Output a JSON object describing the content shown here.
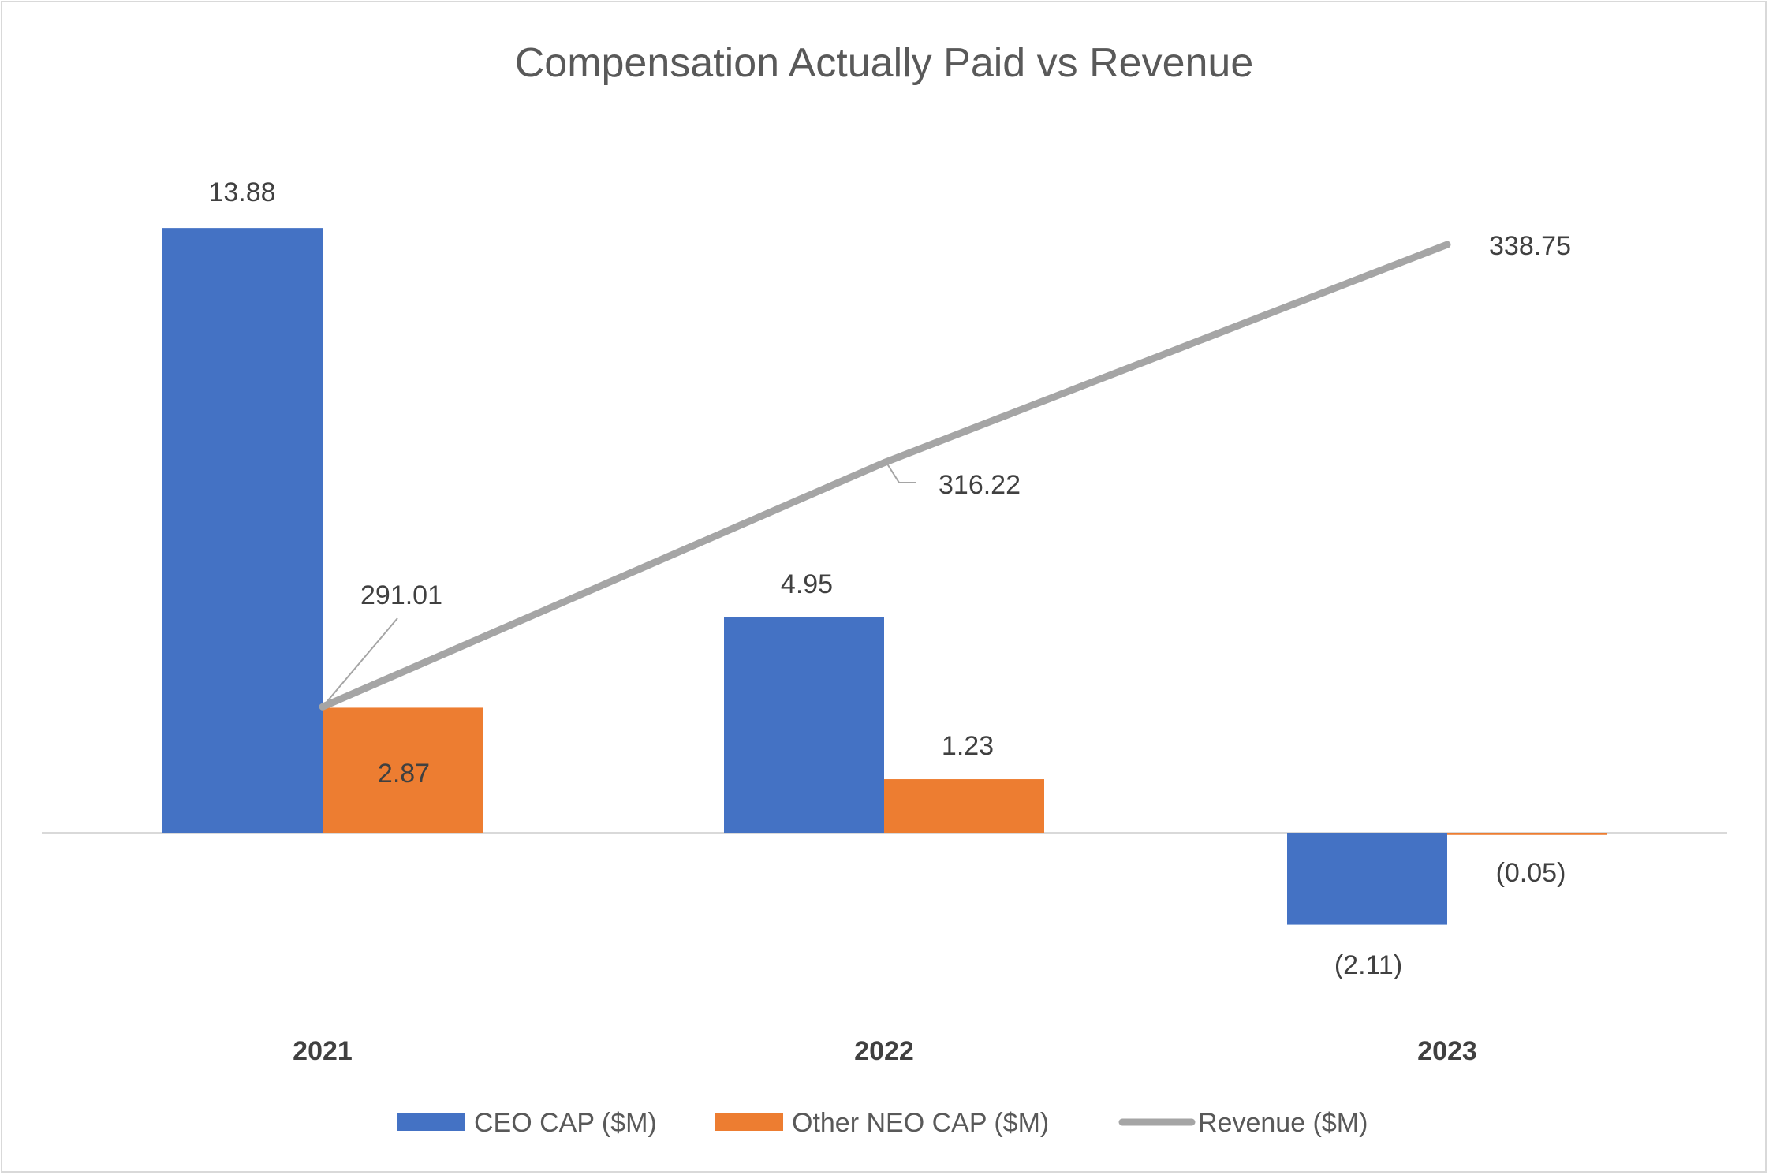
{
  "chart_data": {
    "type": "bar",
    "title": "Compensation Actually Paid vs Revenue",
    "categories": [
      "2021",
      "2022",
      "2023"
    ],
    "series": [
      {
        "name": "CEO CAP ($M)",
        "type": "bar",
        "axis": "primary",
        "color": "#4472c4",
        "values": [
          13.88,
          4.95,
          -2.11
        ],
        "labels": [
          "13.88",
          "4.95",
          "(2.11)"
        ]
      },
      {
        "name": "Other NEO CAP ($M)",
        "type": "bar",
        "axis": "primary",
        "color": "#ed7d31",
        "values": [
          2.87,
          1.23,
          -0.05
        ],
        "labels": [
          "2.87",
          "1.23",
          "(0.05)"
        ]
      },
      {
        "name": "Revenue ($M)",
        "type": "line",
        "axis": "secondary",
        "color": "#a5a5a5",
        "values": [
          291.01,
          316.22,
          338.75
        ],
        "labels": [
          "291.01",
          "316.22",
          "338.75"
        ]
      }
    ],
    "ylim": [
      -4,
      16
    ],
    "y2lim": [
      260,
      350
    ],
    "axes_visible": false,
    "grid": false,
    "legend": "bottom",
    "xlabel": "",
    "ylabel": ""
  }
}
